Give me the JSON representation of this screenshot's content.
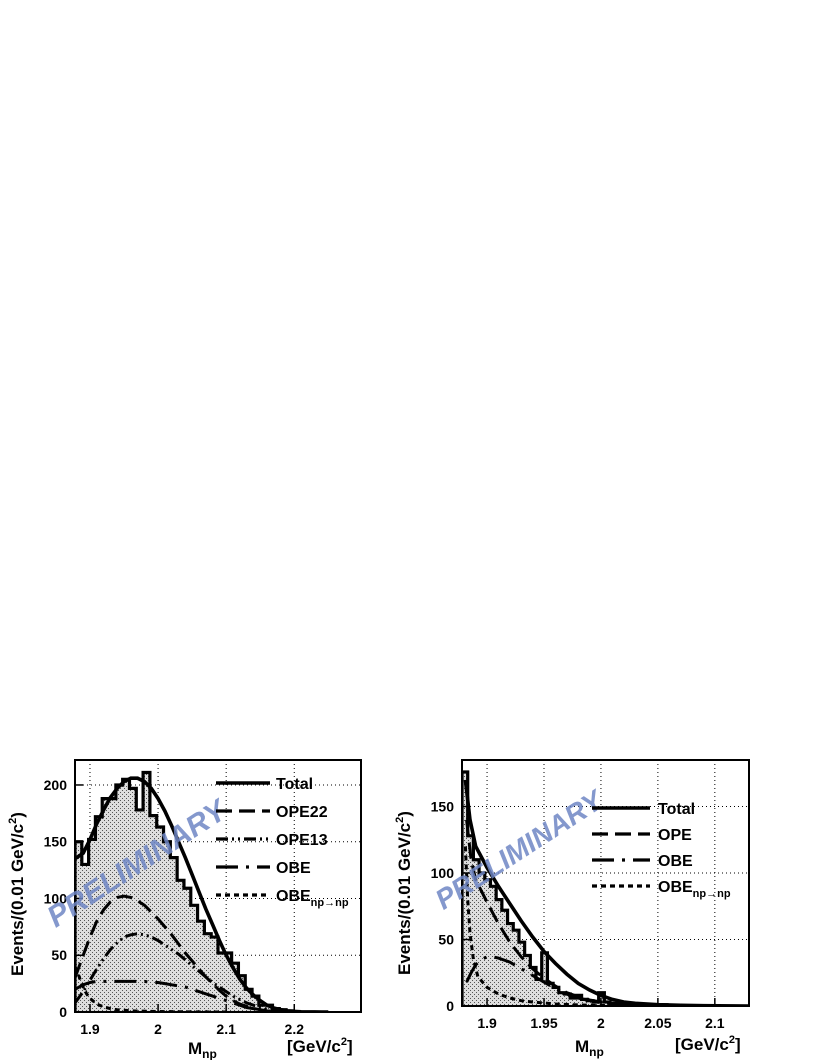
{
  "chart_data": [
    {
      "type": "histogram",
      "xlabel": "M",
      "xlabel_sub": "np",
      "xunit_prefix": "[GeV/c",
      "xunit_sup": "2",
      "xunit_suffix": "]",
      "ylabel_main": "Events/(0.01 GeV/c",
      "ylabel_sup": "2",
      "ylabel_suffix": ")",
      "xlim": [
        1.878,
        2.298
      ],
      "ylim": [
        0,
        222
      ],
      "x_ticks": [
        1.9,
        2.0,
        2.1,
        2.2
      ],
      "x_tick_labels": [
        "1.9",
        "2",
        "2.1",
        "2.2"
      ],
      "y_ticks": [
        0,
        50,
        100,
        150,
        200
      ],
      "y_tick_labels": [
        "0",
        "50",
        "100",
        "150",
        "200"
      ],
      "grid": true,
      "watermark": "PRELIMINARY",
      "legend": [
        {
          "label": "Total",
          "style": "solid"
        },
        {
          "label": "OPE22",
          "style": "dashed"
        },
        {
          "label": "OPE13",
          "style": "dash-dot-dot"
        },
        {
          "label": "OBE",
          "style": "long-dash-dot"
        },
        {
          "label": "OBE",
          "sub": "np→np",
          "style": "dotted"
        }
      ],
      "histogram": {
        "bin_edges": [
          1.878,
          1.888,
          1.898,
          1.908,
          1.918,
          1.928,
          1.938,
          1.948,
          1.958,
          1.968,
          1.978,
          1.988,
          1.998,
          2.008,
          2.018,
          2.028,
          2.038,
          2.048,
          2.058,
          2.068,
          2.078,
          2.088,
          2.098,
          2.108,
          2.118,
          2.128,
          2.138,
          2.148,
          2.158,
          2.168,
          2.178,
          2.188,
          2.198,
          2.208
        ],
        "values": [
          150,
          130,
          152,
          172,
          188,
          188,
          200,
          205,
          197,
          178,
          211,
          173,
          163,
          150,
          136,
          116,
          109,
          94,
          80,
          69,
          66,
          52,
          52,
          43,
          32,
          20,
          14,
          6,
          6,
          3,
          2,
          1,
          0
        ]
      },
      "curves": [
        {
          "name": "Total",
          "style": "solid",
          "x": [
            1.878,
            1.89,
            1.9,
            1.91,
            1.92,
            1.93,
            1.94,
            1.95,
            1.96,
            1.97,
            1.98,
            1.99,
            2.0,
            2.01,
            2.02,
            2.03,
            2.04,
            2.05,
            2.06,
            2.07,
            2.08,
            2.09,
            2.1,
            2.11,
            2.12,
            2.13,
            2.14,
            2.15,
            2.16,
            2.17,
            2.18,
            2.19,
            2.2,
            2.21,
            2.22,
            2.23,
            2.24,
            2.25
          ],
          "y": [
            135,
            140,
            152,
            166,
            178,
            189,
            197,
            203,
            206,
            206,
            203,
            197,
            188,
            177,
            164,
            150,
            136,
            121,
            106,
            91,
            77,
            63,
            50,
            39,
            29,
            21,
            15,
            10,
            6,
            3.5,
            2,
            1,
            0.5,
            0.2,
            0.1,
            0.1,
            0,
            0
          ]
        },
        {
          "name": "OPE22",
          "style": "dashed",
          "x": [
            1.878,
            1.89,
            1.9,
            1.91,
            1.92,
            1.93,
            1.94,
            1.95,
            1.96,
            1.97,
            1.98,
            1.99,
            2.0,
            2.01,
            2.02,
            2.03,
            2.04,
            2.05,
            2.06,
            2.07,
            2.08,
            2.09,
            2.1,
            2.11,
            2.12,
            2.13,
            2.14,
            2.15,
            2.16,
            2.17,
            2.18,
            2.2
          ],
          "y": [
            30,
            50,
            66,
            80,
            90,
            97,
            101,
            102,
            101,
            98,
            94,
            88,
            82,
            75,
            68,
            60,
            52,
            45,
            38,
            31,
            25,
            19,
            14,
            10,
            7,
            5,
            3,
            2,
            1,
            0.5,
            0.2,
            0
          ]
        },
        {
          "name": "OPE13",
          "style": "dash-dot-dot",
          "x": [
            1.878,
            1.89,
            1.9,
            1.91,
            1.92,
            1.93,
            1.94,
            1.95,
            1.96,
            1.97,
            1.98,
            1.99,
            2.0,
            2.01,
            2.02,
            2.03,
            2.04,
            2.05,
            2.06,
            2.07,
            2.08,
            2.09,
            2.1,
            2.11,
            2.12,
            2.13,
            2.14,
            2.15,
            2.16,
            2.17,
            2.18,
            2.2
          ],
          "y": [
            8,
            18,
            28,
            38,
            47,
            55,
            61,
            66,
            68,
            69,
            68,
            66,
            63,
            59,
            55,
            51,
            46,
            41,
            36,
            31,
            26,
            22,
            18,
            14,
            11,
            8,
            6,
            4,
            2.5,
            1.5,
            0.5,
            0
          ]
        },
        {
          "name": "OBE",
          "style": "long-dash-dot",
          "x": [
            1.878,
            1.89,
            1.9,
            1.91,
            1.92,
            1.93,
            1.94,
            1.95,
            1.96,
            1.97,
            1.98,
            1.99,
            2.0,
            2.01,
            2.02,
            2.03,
            2.04,
            2.05,
            2.06,
            2.07,
            2.08,
            2.09,
            2.1,
            2.11,
            2.12,
            2.13,
            2.14,
            2.15,
            2.16,
            2.17,
            2.18,
            2.2
          ],
          "y": [
            20,
            24,
            26,
            27,
            27,
            27,
            27,
            27,
            27,
            27,
            27,
            26,
            26,
            25,
            24,
            23,
            22,
            20,
            18,
            16,
            14,
            12,
            10,
            8,
            6,
            4,
            3,
            2,
            1,
            0.5,
            0.2,
            0
          ]
        },
        {
          "name": "OBE np→np",
          "style": "dotted",
          "x": [
            1.878,
            1.882,
            1.886,
            1.89,
            1.895,
            1.9,
            1.91,
            1.92,
            1.93,
            1.94,
            1.95,
            1.97,
            2.0,
            2.05,
            2.1
          ],
          "y": [
            40,
            35,
            28,
            22,
            16,
            12,
            7,
            4.5,
            3,
            2,
            1.5,
            0.8,
            0.4,
            0.1,
            0
          ]
        }
      ]
    },
    {
      "type": "histogram",
      "xlabel": "M",
      "xlabel_sub": "np",
      "xunit_prefix": "[GeV/c",
      "xunit_sup": "2",
      "xunit_suffix": "]",
      "ylabel_main": "Events/(0.01 GeV/c",
      "ylabel_sup": "2",
      "ylabel_suffix": ")",
      "xlim": [
        1.878,
        2.13
      ],
      "ylim": [
        0,
        185
      ],
      "x_ticks": [
        1.9,
        1.95,
        2.0,
        2.05,
        2.1
      ],
      "x_tick_labels": [
        "1.9",
        "1.95",
        "2",
        "2.05",
        "2.1"
      ],
      "y_ticks": [
        0,
        50,
        100,
        150
      ],
      "y_tick_labels": [
        "0",
        "50",
        "100",
        "150"
      ],
      "grid": true,
      "watermark": "PRELIMINARY",
      "legend": [
        {
          "label": "Total",
          "style": "solid"
        },
        {
          "label": "OPE",
          "style": "dashed"
        },
        {
          "label": "OBE",
          "style": "long-dash-dot"
        },
        {
          "label": "OBE",
          "sub": "np→np",
          "style": "dotted"
        }
      ],
      "histogram": {
        "bin_edges": [
          1.878,
          1.883,
          1.888,
          1.893,
          1.898,
          1.903,
          1.908,
          1.913,
          1.918,
          1.923,
          1.928,
          1.933,
          1.938,
          1.943,
          1.948,
          1.953,
          1.958,
          1.963,
          1.968,
          1.973,
          1.978,
          1.983,
          1.988,
          1.993,
          1.998,
          2.003,
          2.008,
          2.013,
          2.018,
          2.023,
          2.028,
          2.033,
          2.038,
          2.043,
          2.048,
          2.053,
          2.058,
          2.063,
          2.068
        ],
        "values": [
          176,
          128,
          110,
          100,
          95,
          90,
          80,
          72,
          62,
          57,
          48,
          38,
          29,
          20,
          40,
          17,
          14,
          10,
          9,
          6,
          8,
          5,
          4,
          3,
          10,
          3,
          2,
          2,
          1,
          2,
          1,
          1,
          1,
          0,
          0,
          1,
          0,
          0
        ]
      },
      "curves": [
        {
          "name": "Total",
          "style": "solid",
          "x": [
            1.881,
            1.885,
            1.89,
            1.9,
            1.91,
            1.92,
            1.93,
            1.94,
            1.95,
            1.96,
            1.97,
            1.98,
            1.99,
            2.0,
            2.01,
            2.02,
            2.03,
            2.05,
            2.07,
            2.09,
            2.13
          ],
          "y": [
            170,
            140,
            120,
            104,
            90,
            77,
            64,
            52,
            41,
            32,
            24,
            17,
            12,
            8,
            5,
            3,
            2,
            1,
            0.5,
            0.2,
            0
          ]
        },
        {
          "name": "OPE",
          "style": "dashed",
          "x": [
            1.882,
            1.886,
            1.89,
            1.9,
            1.91,
            1.92,
            1.93,
            1.94,
            1.95,
            1.96,
            1.97,
            1.98,
            1.99,
            2.0,
            2.02,
            2.05
          ],
          "y": [
            140,
            110,
            95,
            78,
            62,
            48,
            37,
            28,
            21,
            15,
            10,
            7,
            4.5,
            3,
            1,
            0.2
          ]
        },
        {
          "name": "OBE",
          "style": "long-dash-dot",
          "x": [
            1.882,
            1.886,
            1.89,
            1.895,
            1.9,
            1.905,
            1.91,
            1.92,
            1.93,
            1.94,
            1.95,
            1.96,
            1.97,
            1.98,
            1.99,
            2.0,
            2.02,
            2.05
          ],
          "y": [
            18,
            25,
            31,
            35,
            37,
            37,
            36,
            33,
            28,
            23,
            18,
            13,
            9,
            6,
            4,
            2.5,
            1,
            0.2
          ]
        },
        {
          "name": "OBE np→np",
          "style": "dotted",
          "x": [
            1.881,
            1.883,
            1.885,
            1.888,
            1.892,
            1.9,
            1.91,
            1.92,
            1.93,
            1.94,
            1.96,
            1.98,
            2.0,
            2.05
          ],
          "y": [
            120,
            80,
            55,
            35,
            22,
            14,
            9,
            6,
            4,
            3,
            1.5,
            0.8,
            0.4,
            0.1
          ]
        }
      ]
    }
  ]
}
